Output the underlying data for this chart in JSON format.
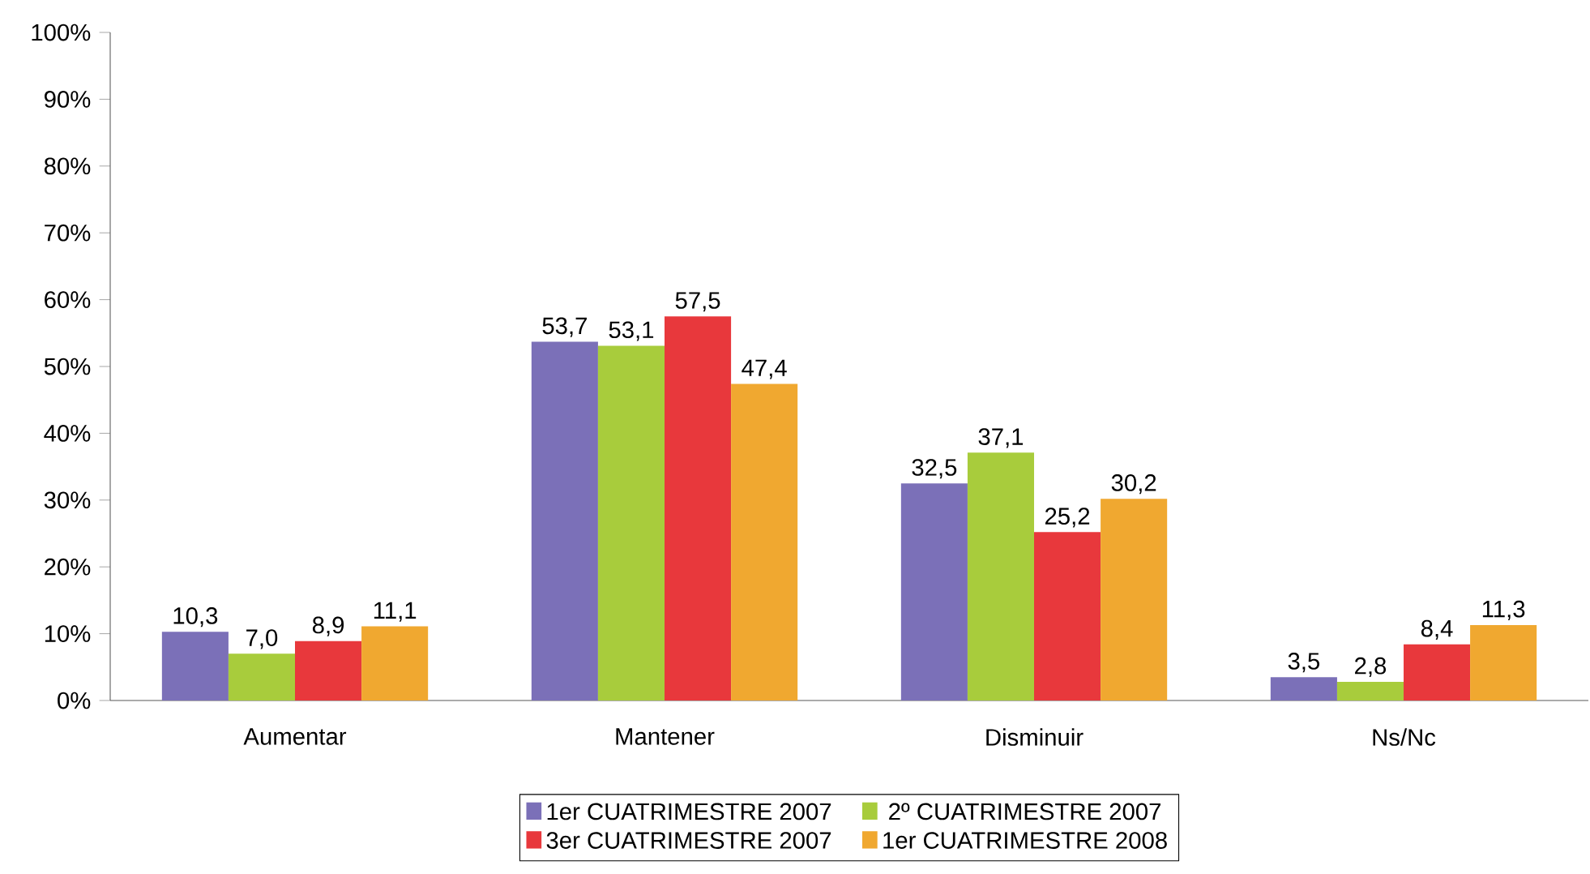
{
  "chart_data": {
    "type": "bar",
    "categories": [
      "Aumentar",
      "Mantener",
      "Disminuir",
      "Ns/Nc"
    ],
    "series": [
      {
        "name": "1er CUATRIMESTRE 2007",
        "color": "#7b70b8",
        "values": [
          10.3,
          53.7,
          32.5,
          3.5
        ],
        "value_labels": [
          "10,3",
          "53,7",
          "32,5",
          "3,5"
        ]
      },
      {
        "name": "2º CUATRIMESTRE 2007",
        "color": "#a8cc3c",
        "values": [
          7.0,
          53.1,
          37.1,
          2.8
        ],
        "value_labels": [
          "7,0",
          "53,1",
          "37,1",
          "2,8"
        ]
      },
      {
        "name": "3er CUATRIMESTRE 2007",
        "color": "#e8383c",
        "values": [
          8.9,
          57.5,
          25.2,
          8.4
        ],
        "value_labels": [
          "8,9",
          "57,5",
          "25,2",
          "8,4"
        ]
      },
      {
        "name": "1er CUATRIMESTRE 2008",
        "color": "#f0a830",
        "values": [
          11.1,
          47.4,
          30.2,
          11.3
        ],
        "value_labels": [
          "11,1",
          "47,4",
          "30,2",
          "11,3"
        ]
      }
    ],
    "ylim": [
      0,
      100
    ],
    "yticks": [
      {
        "value": 0,
        "label": "0%"
      },
      {
        "value": 10,
        "label": "10%"
      },
      {
        "value": 20,
        "label": "20%"
      },
      {
        "value": 30,
        "label": "30%"
      },
      {
        "value": 40,
        "label": "40%"
      },
      {
        "value": 50,
        "label": "50%"
      },
      {
        "value": 60,
        "label": "60%"
      },
      {
        "value": 70,
        "label": "70%"
      },
      {
        "value": 80,
        "label": "80%"
      },
      {
        "value": 90,
        "label": "90%"
      },
      {
        "value": 100,
        "label": "100%"
      }
    ],
    "grid": false,
    "legend": "bottom"
  }
}
